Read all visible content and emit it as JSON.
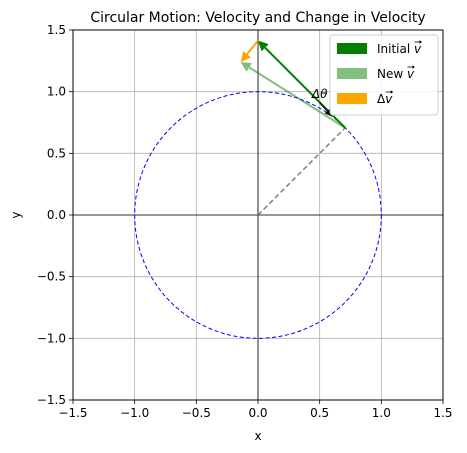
{
  "chart_data": {
    "type": "line",
    "title": "Circular Motion: Velocity and Change in Velocity",
    "xlabel": "x",
    "ylabel": "y",
    "xlim": [
      -1.5,
      1.5
    ],
    "ylim": [
      -1.5,
      1.5
    ],
    "x_ticks": [
      -1.5,
      -1.0,
      -0.5,
      0.0,
      0.5,
      1.0,
      1.5
    ],
    "y_ticks": [
      -1.5,
      -1.0,
      -0.5,
      0.0,
      0.5,
      1.0,
      1.5
    ],
    "x_tick_labels": [
      "−1.5",
      "−1.0",
      "−0.5",
      "0.0",
      "0.5",
      "1.0",
      "1.5"
    ],
    "y_tick_labels": [
      "−1.5",
      "−1.0",
      "−0.5",
      "0.0",
      "0.5",
      "1.0",
      "1.5"
    ],
    "grid": true,
    "equal_aspect": true,
    "circle": {
      "center": [
        0,
        0
      ],
      "radius": 1.0,
      "color": "#0000ff",
      "style": "dashed"
    },
    "radius_line": {
      "from": [
        0,
        0
      ],
      "to": [
        0.707,
        0.707
      ],
      "color": "#808080",
      "style": "dashed"
    },
    "arrows": [
      {
        "name": "Initial v",
        "from": [
          0.707,
          0.707
        ],
        "to": [
          0.0,
          1.414
        ],
        "color": "#008000",
        "opacity": 1.0
      },
      {
        "name": "New v",
        "from": [
          0.707,
          0.707
        ],
        "to": [
          -0.14,
          1.24
        ],
        "color": "#008000",
        "opacity": 0.5
      },
      {
        "name": "Δv",
        "from": [
          0.0,
          1.414
        ],
        "to": [
          -0.14,
          1.24
        ],
        "color": "#ffa500",
        "opacity": 1.0
      }
    ],
    "small_arrow": {
      "from": [
        0.5,
        0.91
      ],
      "to": [
        0.6,
        0.8
      ],
      "color": "#000000"
    },
    "annotation": {
      "text": "Δθ",
      "at": [
        0.5,
        0.95
      ]
    },
    "legend": {
      "placement": "top-right",
      "entries": [
        {
          "label": "Initial ",
          "symbol": "v",
          "color": "#008000"
        },
        {
          "label": "New ",
          "symbol": "v",
          "color": "#80c080"
        },
        {
          "label": "Δ",
          "symbol": "v",
          "color": "#ffa500"
        }
      ]
    }
  }
}
